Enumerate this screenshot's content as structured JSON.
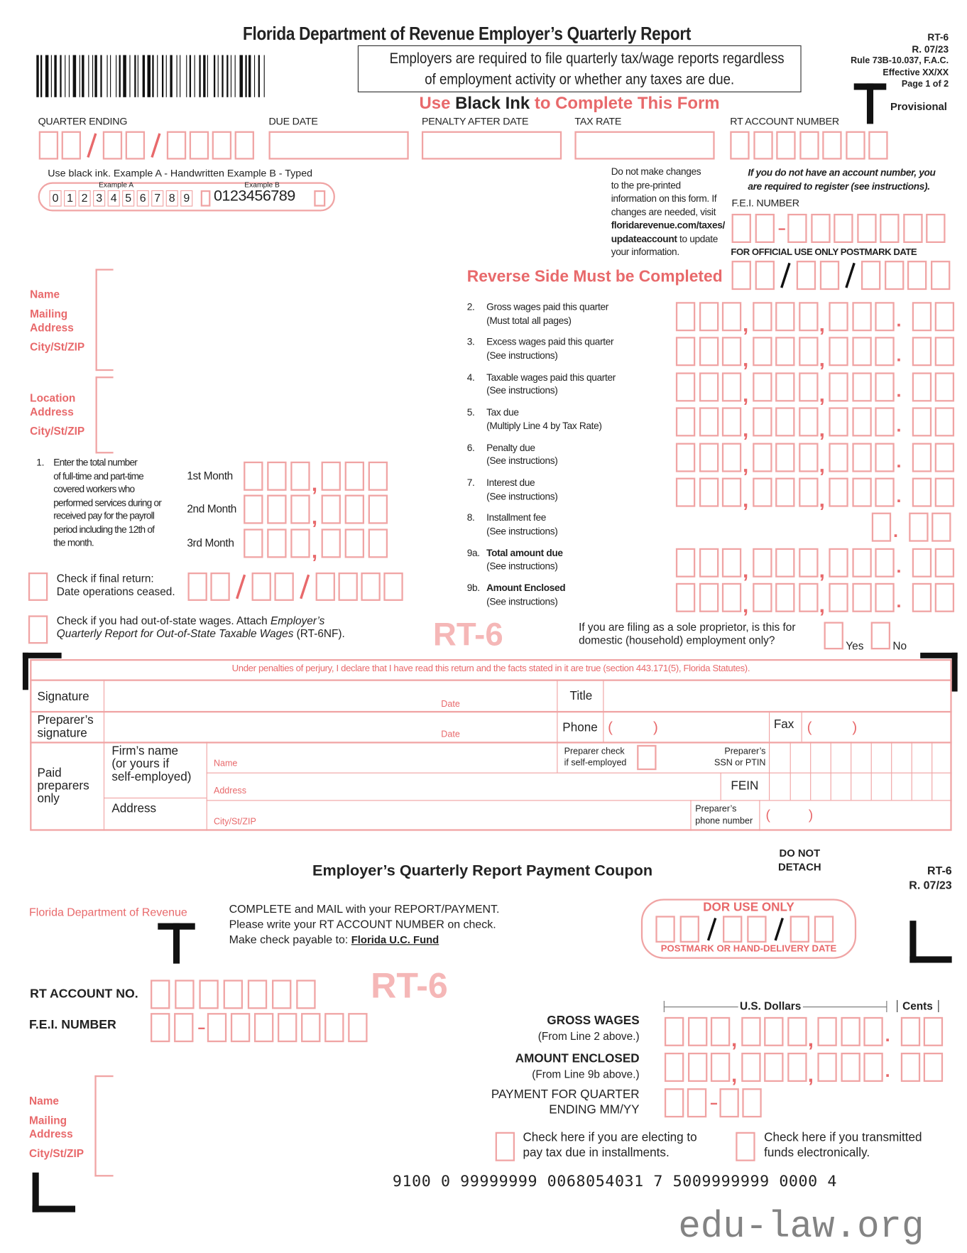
{
  "header": {
    "title": "Florida Department of Revenue Employer’s Quarterly Report",
    "notice_line1": "Employers are required to file quarterly tax/wage reports regardless",
    "notice_line2": "of employment activity or whether any taxes are due.",
    "form_id": "RT-6",
    "revision": "R. 07/23",
    "rule": "Rule 73B-10.037, F.A.C.",
    "effective": "Effective XX/XX",
    "page": "Page 1 of 2",
    "provisional": "Provisional",
    "ink_use": "Use",
    "ink_black": "Black Ink",
    "ink_rest": "to Complete This Form"
  },
  "fields": {
    "quarter_ending": "QUARTER ENDING",
    "due_date": "DUE DATE",
    "penalty_after_date": "PENALTY AFTER DATE",
    "tax_rate": "TAX RATE",
    "rt_account_number": "RT ACCOUNT NUMBER",
    "fei_number": "F.E.I. NUMBER",
    "official_use": "FOR OFFICIAL USE ONLY POSTMARK DATE"
  },
  "examples": {
    "caption": "Use black ink.  Example A - Handwritten  Example B - Typed",
    "a_label": "Example A",
    "b_label": "Example B",
    "a_digits": [
      "0",
      "1",
      "2",
      "3",
      "4",
      "5",
      "6",
      "7",
      "8",
      "9"
    ],
    "b_digits": "0123456789"
  },
  "changes_note": [
    "Do not make changes",
    "to the pre-printed",
    "information on this form. If",
    "changes are needed, visit",
    "floridarevenue.com/taxes/",
    "updateaccount to update",
    "your information."
  ],
  "register_note": [
    "If you do not have an account number, you",
    "are required to register (see instructions)."
  ],
  "reverse_side": "Reverse Side Must be Completed",
  "address": {
    "name": "Name",
    "mailing1": "Mailing",
    "mailing2": "Address",
    "city": "City/St/ZIP",
    "location1": "Location",
    "location2": "Address",
    "city2": "City/St/ZIP"
  },
  "lines": [
    {
      "num": "2.",
      "text": "Gross wages paid this quarter",
      "sub": "(Must total all pages)"
    },
    {
      "num": "3.",
      "text": "Excess wages paid this quarter",
      "sub": "(See instructions)"
    },
    {
      "num": "4.",
      "text": "Taxable wages paid this quarter",
      "sub": "(See instructions)"
    },
    {
      "num": "5.",
      "text": "Tax due",
      "sub": "(Multiply Line 4 by Tax Rate)"
    },
    {
      "num": "6.",
      "text": "Penalty due",
      "sub": "(See instructions)"
    },
    {
      "num": "7.",
      "text": "Interest due",
      "sub": "(See instructions)"
    },
    {
      "num": "8.",
      "text": "Installment fee",
      "sub": "(See instructions)"
    },
    {
      "num": "9a.",
      "text": "Total amount due",
      "sub": "(See instructions)"
    },
    {
      "num": "9b.",
      "text": "Amount Enclosed",
      "sub": "(See instructions)"
    }
  ],
  "workers": {
    "num": "1.",
    "text": [
      "Enter the total number",
      "of full-time and part-time",
      "covered workers who",
      "performed services during or",
      "received pay for the payroll",
      "period including the 12th of",
      "the month."
    ],
    "months": [
      "1st Month",
      "2nd Month",
      "3rd Month"
    ]
  },
  "final_return": {
    "line1": "Check if final return:",
    "line2": "Date operations ceased."
  },
  "out_of_state": {
    "line1_a": "Check if you had out-of-state wages. Attach ",
    "line1_b": "Employer’s",
    "line2_a": "Quarterly Report for Out-of-State Taxable Wages",
    "line2_b": " (RT-6NF)."
  },
  "watermark_form": "RT-6",
  "sole_prop": {
    "line1": "If you are filing as a sole proprietor, is this for",
    "line2": "domestic (household) employment only?",
    "yes": "Yes",
    "no": "No"
  },
  "signature": {
    "perjury": "Under penalties of perjury, I declare that I have read this return and the facts stated in it are true (section 443.171(5), Florida Statutes).",
    "signature": "Signature",
    "date": "Date",
    "title": "Title",
    "preparer_sig1": "Preparer’s",
    "preparer_sig2": "signature",
    "phone": "Phone",
    "fax": "Fax",
    "paren": "(          )",
    "paid1": "Paid",
    "paid2": "preparers",
    "paid3": "only",
    "firm1": "Firm’s name",
    "firm2": "(or yours if",
    "firm3": "self-employed)",
    "address": "Address",
    "name_ph": "Name",
    "address_ph": "Address",
    "city_ph": "City/St/ZIP",
    "self_check1": "Preparer check",
    "self_check2": "if self-employed",
    "ssn1": "Preparer’s",
    "ssn2": "SSN or PTIN",
    "fein": "FEIN",
    "prep_phone1": "Preparer’s",
    "prep_phone2": "phone number"
  },
  "coupon": {
    "do_not1": "DO NOT",
    "do_not2": "DETACH",
    "title": "Employer’s Quarterly Report Payment Coupon",
    "form_id": "RT-6",
    "revision": "R. 07/23",
    "dor": "Florida Department of Revenue",
    "instr1": "COMPLETE and MAIL with your REPORT/PAYMENT.",
    "instr2": "Please write your RT ACCOUNT NUMBER on check.",
    "instr3": "Make check payable to: ",
    "payee": "Florida U.C. Fund",
    "dor_use": "DOR  USE  ONLY",
    "postmark": "POSTMARK OR HAND-DELIVERY DATE",
    "rt_account": "RT ACCOUNT NO.",
    "fei": "F.E.I. NUMBER",
    "us_dollars": "U.S. Dollars",
    "cents": "Cents",
    "gross": "GROSS WAGES",
    "gross_sub": "(From Line 2 above.)",
    "amount": "AMOUNT ENCLOSED",
    "amount_sub": "(From Line 9b above.)",
    "payment1": "PAYMENT FOR QUARTER",
    "payment2": "ENDING MM/YY",
    "install1": "Check here if you are electing to",
    "install2": "pay tax due in installments.",
    "elec1": "Check here if you transmitted",
    "elec2": "funds electronically.",
    "name": "Name",
    "mailing1": "Mailing",
    "mailing2": "Address",
    "city": "City/St/ZIP"
  },
  "scanline": "9100 0 99999999 0068054031 7 5009999999 0000 4",
  "site_watermark": "edu-law.org",
  "colors": {
    "accent": "#e8696b",
    "box": "#f0a4a4",
    "ink": "#222222"
  }
}
